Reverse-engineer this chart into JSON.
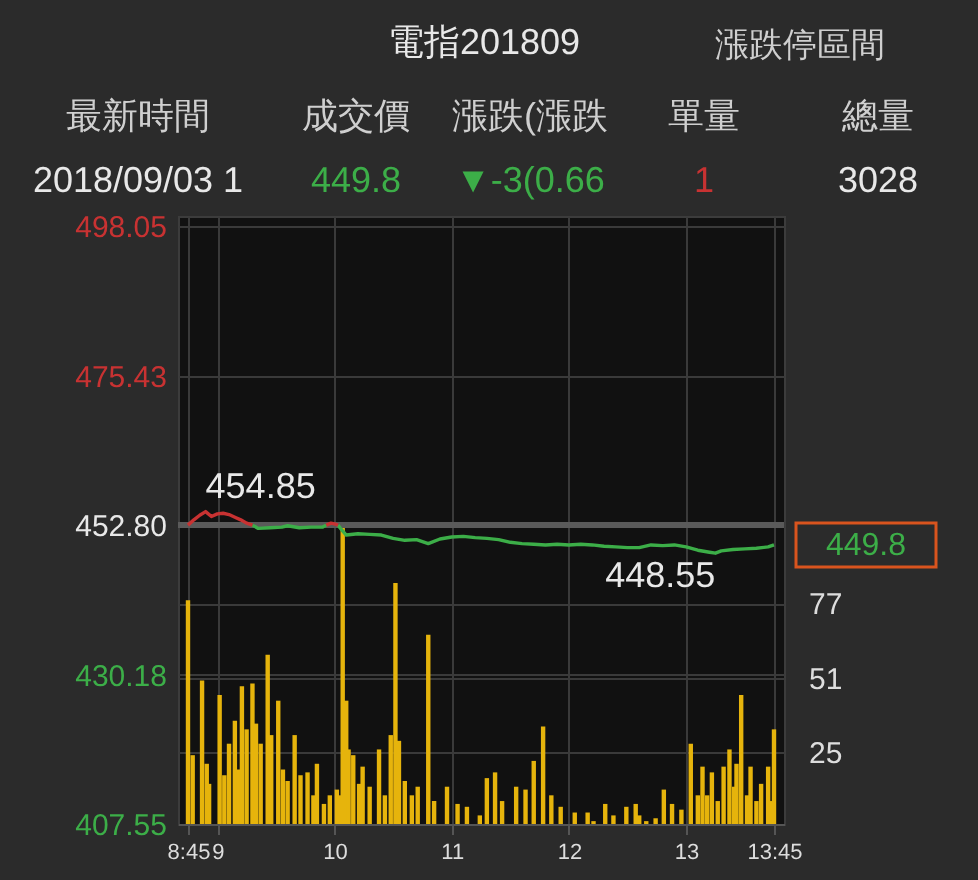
{
  "chart_data": {
    "type": "line",
    "title": "電指201809",
    "annotations": [
      "漲跌停區間",
      "最新時間",
      "成交價",
      "漲跌(漲跌",
      "單量",
      "總量",
      "2018/09/03 1",
      "449.8",
      "▼-3(0.66",
      "1",
      "3028",
      {
        "text": "454.85",
        "x": 8.9,
        "y": 454.85
      },
      {
        "text": "448.55",
        "x": 13.25,
        "y": 448.55
      },
      {
        "text": "449.8",
        "x": 13.75,
        "y": 449.8
      }
    ],
    "xlim": [
      8.75,
      13.75
    ],
    "xticks": [
      {
        "value": 8.75,
        "label": "8:45"
      },
      9,
      10,
      11,
      12,
      13,
      {
        "value": 13.75,
        "label": "13:45"
      }
    ],
    "ylim": [
      407.55,
      499.6
    ],
    "yticks": [
      498.05,
      475.43,
      {
        "value": 452.8,
        "label": "452.80"
      },
      430.18,
      407.55
    ],
    "y2lim": [
      0,
      212
    ],
    "y2ticks": [
      25,
      51,
      77
    ],
    "ref_lines": [
      {
        "axis": "y",
        "value": 452.8,
        "color": "#5a5a5a"
      }
    ],
    "grid": true,
    "marker": "none",
    "line_style": "solid",
    "series": [
      {
        "color": "#3cae48",
        "x": [
          9.3,
          9.35,
          9.45,
          9.55,
          9.6,
          9.7,
          9.8,
          9.9,
          9.93,
          9.97,
          10.03,
          10.06,
          10.1,
          10.2,
          10.3,
          10.4,
          10.5,
          10.6,
          10.7,
          10.8,
          10.9,
          11.0,
          11.1,
          11.2,
          11.3,
          11.4,
          11.5,
          11.6,
          11.7,
          11.8,
          11.9,
          12.0,
          12.1,
          12.2,
          12.3,
          12.4,
          12.5,
          12.6,
          12.7,
          12.8,
          12.9,
          13.0,
          13.1,
          13.2,
          13.25,
          13.3,
          13.4,
          13.5,
          13.6,
          13.7,
          13.75
        ],
        "values": [
          452.8,
          452.3,
          452.4,
          452.5,
          452.7,
          452.4,
          452.5,
          452.5,
          452.8,
          null,
          452.8,
          452.1,
          451.3,
          451.5,
          451.4,
          451.3,
          450.8,
          450.5,
          450.6,
          450.0,
          450.7,
          451.0,
          451.1,
          450.9,
          450.8,
          450.6,
          450.2,
          450.0,
          449.9,
          449.8,
          449.9,
          449.8,
          449.9,
          449.8,
          449.6,
          449.5,
          449.4,
          449.4,
          449.8,
          449.7,
          449.8,
          449.5,
          449.0,
          448.7,
          448.55,
          448.9,
          449.1,
          449.2,
          449.3,
          449.5,
          449.8
        ]
      },
      {
        "color": "#c83232",
        "x": [
          8.75,
          8.8,
          8.85,
          8.9,
          8.95,
          9.0,
          9.05,
          9.1,
          9.15,
          9.2,
          9.25,
          9.3
        ],
        "values": [
          452.8,
          453.6,
          454.3,
          454.85,
          454.1,
          454.5,
          454.6,
          454.4,
          454.0,
          453.6,
          453.1,
          452.8
        ]
      },
      {
        "color": "#c83232",
        "x": [
          9.93,
          9.97,
          10.0,
          10.03
        ],
        "values": [
          452.8,
          453.1,
          453.0,
          452.8
        ]
      },
      {
        "type": "bar",
        "axis": "y2",
        "color": "#e6b40c",
        "x": [
          8.75,
          8.79,
          8.87,
          8.91,
          8.93,
          9.02,
          9.06,
          9.1,
          9.15,
          9.18,
          9.21,
          9.25,
          9.3,
          9.33,
          9.37,
          9.43,
          9.46,
          9.52,
          9.56,
          9.6,
          9.66,
          9.71,
          9.77,
          9.82,
          9.85,
          9.91,
          9.96,
          10.02,
          10.04,
          10.07,
          10.1,
          10.12,
          10.16,
          10.21,
          10.24,
          10.3,
          10.38,
          10.43,
          10.48,
          10.52,
          10.55,
          10.6,
          10.66,
          10.71,
          10.8,
          10.85,
          10.96,
          11.05,
          11.13,
          11.24,
          11.3,
          11.37,
          11.43,
          11.55,
          11.63,
          11.7,
          11.78,
          11.85,
          11.93,
          12.05,
          12.16,
          12.21,
          12.31,
          12.38,
          12.49,
          12.57,
          12.6,
          12.66,
          12.74,
          12.81,
          12.88,
          12.96,
          13.04,
          13.1,
          13.14,
          13.18,
          13.22,
          13.27,
          13.32,
          13.37,
          13.41,
          13.43,
          13.47,
          13.52,
          13.55,
          13.6,
          13.64,
          13.7,
          13.72,
          13.75
        ],
        "values": [
          78,
          24,
          50,
          21,
          14,
          45,
          17,
          28,
          36,
          19,
          48,
          33,
          49,
          35,
          28,
          59,
          31,
          43,
          19,
          15,
          31,
          17,
          18,
          10,
          21,
          7,
          10,
          12,
          10,
          104,
          43,
          26,
          24,
          14,
          20,
          13,
          26,
          10,
          31,
          84,
          29,
          15,
          10,
          13,
          66,
          8,
          13,
          7,
          6,
          3,
          16,
          18,
          8,
          13,
          12,
          22,
          34,
          10,
          6,
          4,
          4,
          1,
          7,
          3,
          6,
          7,
          3,
          1,
          2,
          12,
          7,
          5,
          28,
          10,
          20,
          10,
          18,
          8,
          20,
          26,
          13,
          21,
          45,
          10,
          20,
          8,
          14,
          20,
          8,
          33
        ]
      }
    ]
  }
}
